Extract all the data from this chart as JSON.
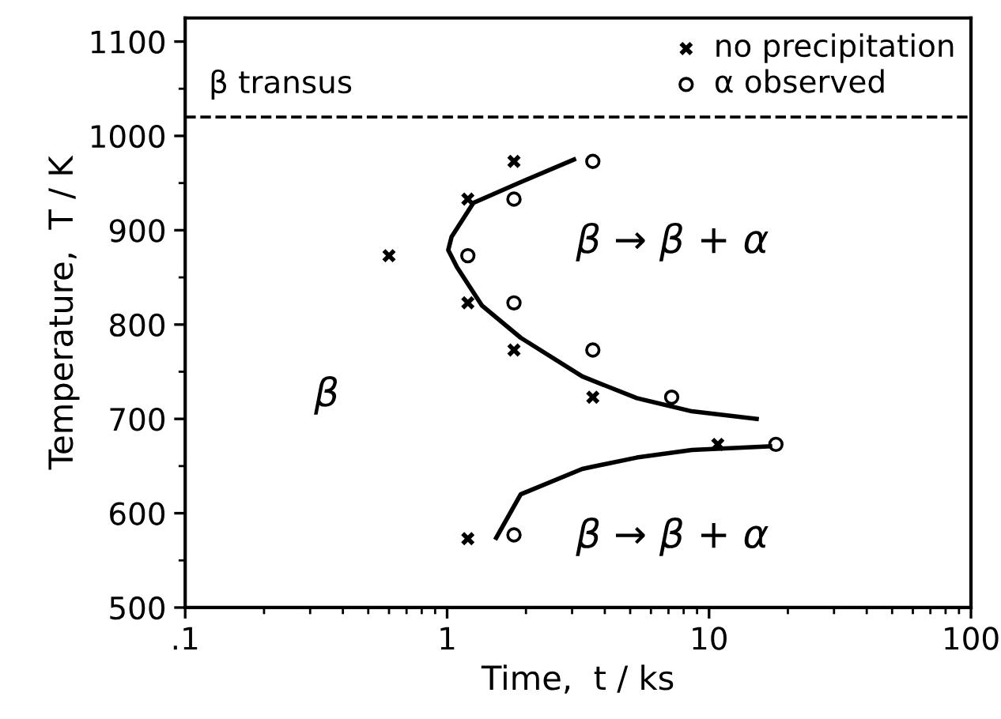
{
  "chart_data": {
    "type": "scatter",
    "xlabel": "Time,  t / ks",
    "ylabel": "Temperature,  T / K",
    "log": "x",
    "xlim": [
      0.1,
      100
    ],
    "xticks": [
      {
        "value": 0.1,
        "label": ".1"
      },
      1,
      10,
      100
    ],
    "ylim": [
      500,
      1125
    ],
    "yticks": [
      500,
      600,
      700,
      800,
      900,
      1000,
      1100
    ],
    "grid": false,
    "legend": "top right",
    "series": [
      {
        "name": "no precipitation",
        "marker": "cross",
        "color": "#000000",
        "x": [
          1.8,
          1.2,
          0.6,
          1.2,
          1.8,
          3.6,
          10.8,
          1.2
        ],
        "values": [
          973,
          933,
          873,
          823,
          773,
          723,
          673,
          573
        ]
      },
      {
        "name": "α observed",
        "marker": "circle",
        "color": "#000000",
        "x": [
          3.6,
          1.8,
          1.2,
          1.8,
          3.6,
          7.2,
          18,
          1.8
        ],
        "values": [
          973,
          933,
          873,
          823,
          773,
          723,
          673,
          577
        ]
      },
      {
        "type": "line",
        "marker": "none",
        "color": "#000000",
        "x": [
          3.05,
          1.91,
          1.26,
          1.04,
          1.01,
          1.09,
          1.36,
          1.91,
          3.28,
          5.3,
          8.6,
          15.2
        ],
        "values": [
          975,
          951,
          929,
          893,
          879,
          861,
          820,
          786,
          745,
          722,
          708,
          700
        ]
      },
      {
        "type": "line",
        "marker": "none",
        "color": "#000000",
        "x": [
          1.54,
          1.91,
          3.28,
          5.3,
          8.6,
          17.1
        ],
        "values": [
          574,
          620,
          647,
          659,
          667,
          671
        ]
      }
    ],
    "ref_lines": [
      {
        "axis": "y",
        "value": 1020,
        "label": "β transus",
        "line_style": "dashed",
        "color": "#000000"
      }
    ],
    "annotations": [
      "β → β + α",
      "β → β + α",
      "β"
    ]
  }
}
